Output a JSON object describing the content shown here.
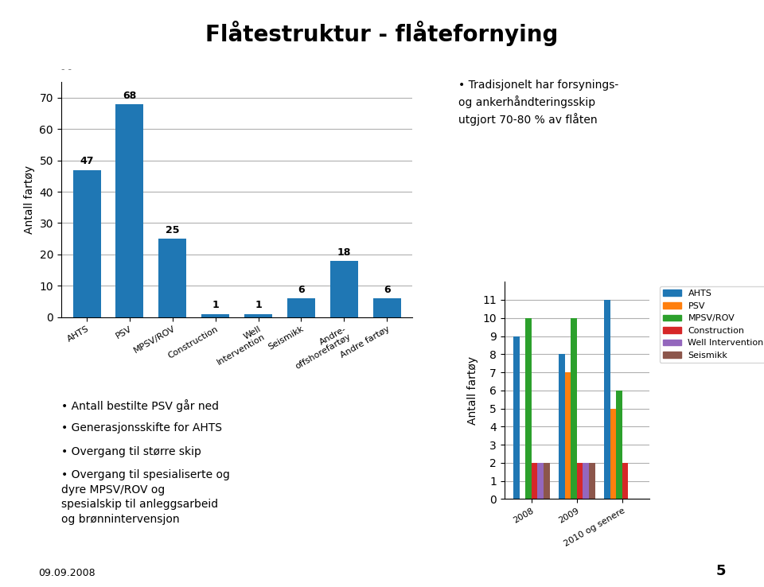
{
  "title": "Flåtestruktur - flåtefornying",
  "annotations": [
    "• Tradisjonelt har forsynings-\nog ankerhåndteringsskip\nutgjort 70-80 % av flåten",
    "• Antall bestilte PSV går ned",
    "• Generasjonsskifte for AHTS",
    "• Overgang til større skip",
    "• Overgang til spesialiserte og\ndyre MPSV/ROV og\nspesialskip til anleggsarbeid\nog brønnintervensjon"
  ],
  "footer": [
    "09.09.2008",
    "5"
  ],
  "chart_data": [
    {
      "type": "bar",
      "categories": [
        "AHTS",
        "PSV",
        "MPSV/ROV",
        "Construction",
        "Well\nIntervention",
        "Seismikk",
        "Andre-\noffshorefartøy",
        "Andre fartøy"
      ],
      "values": [
        47,
        68,
        25,
        1,
        1,
        6,
        18,
        6
      ],
      "y_label": "Antall fartøy",
      "ylim": [
        0,
        75
      ],
      "yticks": [
        0,
        10,
        20,
        30,
        40,
        50,
        60,
        70
      ],
      "grid": true,
      "data_labels": true,
      "annotations": [
        "- -"
      ]
    },
    {
      "type": "bar",
      "categories": [
        "2008",
        "2009",
        "2010 og senere"
      ],
      "series": [
        {
          "name": "AHTS",
          "values": [
            9,
            8,
            11
          ]
        },
        {
          "name": "PSV",
          "values": [
            0,
            7,
            5
          ]
        },
        {
          "name": "MPSV/ROV",
          "values": [
            10,
            10,
            6
          ]
        },
        {
          "name": "Construction",
          "values": [
            2,
            2,
            2
          ]
        },
        {
          "name": "Well Intervention",
          "values": [
            2,
            2,
            0
          ]
        },
        {
          "name": "Seismikk",
          "values": [
            2,
            2,
            0
          ]
        }
      ],
      "y_label": "Antall fartøy",
      "ylim": [
        0,
        12
      ],
      "yticks": [
        0,
        1,
        2,
        3,
        4,
        5,
        6,
        7,
        8,
        9,
        10,
        11
      ],
      "grid": true,
      "legend": "upper left"
    }
  ]
}
